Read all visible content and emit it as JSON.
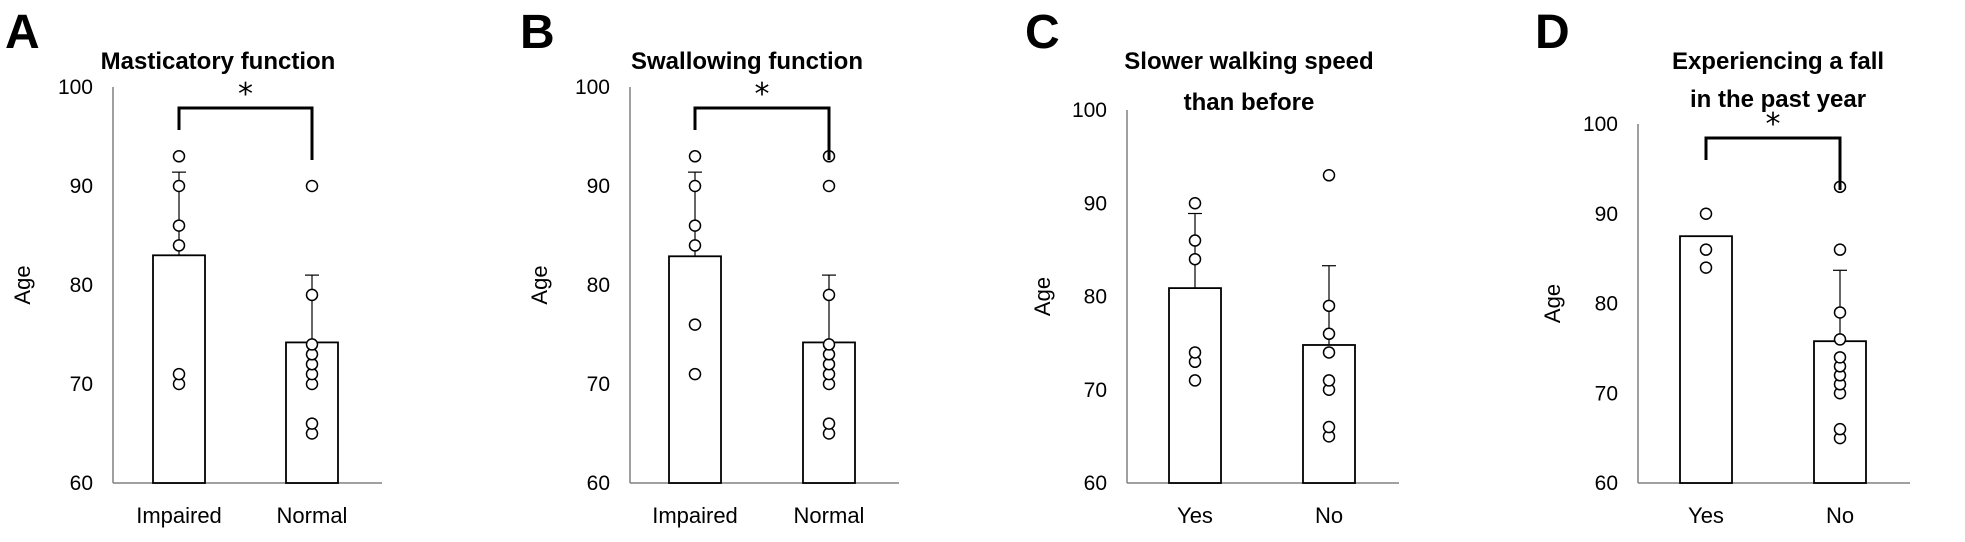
{
  "chart_data": [
    {
      "type": "bar",
      "panel": "A",
      "title": [
        "Masticatory function"
      ],
      "ylabel": "Age",
      "ylim": [
        60,
        100
      ],
      "yticks": [
        "60",
        "70",
        "80",
        "90",
        "100"
      ],
      "categories": [
        "Impaired",
        "Normal"
      ],
      "values": [
        83,
        74.2
      ],
      "error_upper": [
        91.4,
        81
      ],
      "points": [
        [
          70,
          71,
          84,
          86,
          90,
          93
        ],
        [
          65,
          66,
          70,
          71,
          72,
          73,
          74,
          79,
          90
        ]
      ],
      "significance": "*",
      "grid": false,
      "legend": false
    },
    {
      "type": "bar",
      "panel": "B",
      "title": [
        "Swallowing function"
      ],
      "ylabel": "Age",
      "ylim": [
        60,
        100
      ],
      "yticks": [
        "60",
        "70",
        "80",
        "90",
        "100"
      ],
      "categories": [
        "Impaired",
        "Normal"
      ],
      "values": [
        82.9,
        74.2
      ],
      "error_upper": [
        91.4,
        81
      ],
      "points": [
        [
          71,
          76,
          84,
          86,
          90,
          93
        ],
        [
          65,
          66,
          70,
          71,
          72,
          73,
          74,
          79,
          90,
          93
        ]
      ],
      "significance": "*",
      "grid": false,
      "legend": false
    },
    {
      "type": "bar",
      "panel": "C",
      "title": [
        "Slower walking speed",
        "than before"
      ],
      "ylabel": "Age",
      "ylim": [
        60,
        100
      ],
      "yticks": [
        "60",
        "70",
        "80",
        "90",
        "100"
      ],
      "categories": [
        "Yes",
        "No"
      ],
      "values": [
        80.9,
        74.8
      ],
      "error_upper": [
        88.9,
        83.3
      ],
      "points": [
        [
          71,
          73,
          74,
          84,
          86,
          90
        ],
        [
          65,
          66,
          70,
          71,
          74,
          76,
          79,
          93
        ]
      ],
      "significance": "",
      "grid": false,
      "legend": false
    },
    {
      "type": "bar",
      "panel": "D",
      "title": [
        "Experiencing a fall",
        "in the past year"
      ],
      "ylabel": "Age",
      "ylim": [
        60,
        100
      ],
      "yticks": [
        "60",
        "70",
        "80",
        "90",
        "100"
      ],
      "categories": [
        "Yes",
        "No"
      ],
      "values": [
        87.5,
        75.8
      ],
      "error_upper": [
        87.5,
        83.7
      ],
      "points": [
        [
          84,
          86,
          90
        ],
        [
          65,
          66,
          70,
          71,
          72,
          73,
          74,
          76,
          79,
          86,
          93
        ]
      ],
      "significance": "*",
      "grid": false,
      "legend": false
    }
  ]
}
